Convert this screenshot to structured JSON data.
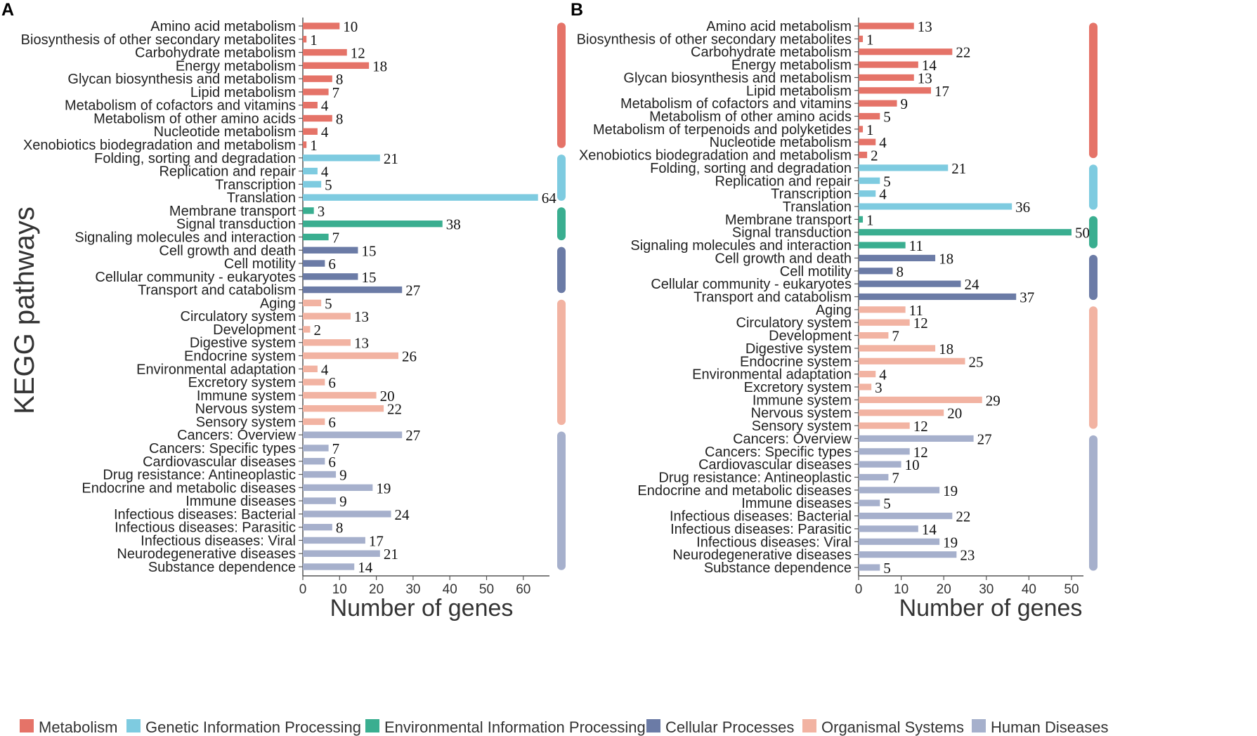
{
  "figure": {
    "ylabel": "KEGG pathways"
  },
  "categories": [
    {
      "key": "metabolism",
      "name": "Metabolism",
      "color": "#e57368"
    },
    {
      "key": "genetic",
      "name": "Genetic Information Processing",
      "color": "#7ecbe0"
    },
    {
      "key": "environmental",
      "name": "Environmental Information Processing",
      "color": "#3aae90"
    },
    {
      "key": "cellular",
      "name": "Cellular Processes",
      "color": "#6b7ba6"
    },
    {
      "key": "organismal",
      "name": "Organismal Systems",
      "color": "#f2b3a2"
    },
    {
      "key": "human",
      "name": "Human Diseases",
      "color": "#a6b0cc"
    }
  ],
  "chart_data": [
    {
      "type": "bar",
      "orientation": "horizontal",
      "panel": "A",
      "xlabel": "Number of genes",
      "ylabel": "KEGG pathways",
      "xlim": [
        0,
        68
      ],
      "xticks": [
        0,
        10,
        20,
        30,
        40,
        50,
        60
      ],
      "pathways": [
        {
          "label": "Amino acid metabolism",
          "value": 10,
          "category": "metabolism"
        },
        {
          "label": "Biosynthesis of other secondary metabolites",
          "value": 1,
          "category": "metabolism"
        },
        {
          "label": "Carbohydrate metabolism",
          "value": 12,
          "category": "metabolism"
        },
        {
          "label": "Energy metabolism",
          "value": 18,
          "category": "metabolism"
        },
        {
          "label": "Glycan biosynthesis and metabolism",
          "value": 8,
          "category": "metabolism"
        },
        {
          "label": "Lipid metabolism",
          "value": 7,
          "category": "metabolism"
        },
        {
          "label": "Metabolism of cofactors and vitamins",
          "value": 4,
          "category": "metabolism"
        },
        {
          "label": "Metabolism of other amino acids",
          "value": 8,
          "category": "metabolism"
        },
        {
          "label": "Nucleotide metabolism",
          "value": 4,
          "category": "metabolism"
        },
        {
          "label": "Xenobiotics biodegradation and metabolism",
          "value": 1,
          "category": "metabolism"
        },
        {
          "label": "Folding, sorting and degradation",
          "value": 21,
          "category": "genetic"
        },
        {
          "label": "Replication and repair",
          "value": 4,
          "category": "genetic"
        },
        {
          "label": "Transcription",
          "value": 5,
          "category": "genetic"
        },
        {
          "label": "Translation",
          "value": 64,
          "category": "genetic"
        },
        {
          "label": "Membrane transport",
          "value": 3,
          "category": "environmental"
        },
        {
          "label": "Signal transduction",
          "value": 38,
          "category": "environmental"
        },
        {
          "label": "Signaling molecules and interaction",
          "value": 7,
          "category": "environmental"
        },
        {
          "label": "Cell growth and death",
          "value": 15,
          "category": "cellular"
        },
        {
          "label": "Cell motility",
          "value": 6,
          "category": "cellular"
        },
        {
          "label": "Cellular community - eukaryotes",
          "value": 15,
          "category": "cellular"
        },
        {
          "label": "Transport and catabolism",
          "value": 27,
          "category": "cellular"
        },
        {
          "label": "Aging",
          "value": 5,
          "category": "organismal"
        },
        {
          "label": "Circulatory system",
          "value": 13,
          "category": "organismal"
        },
        {
          "label": "Development",
          "value": 2,
          "category": "organismal"
        },
        {
          "label": "Digestive system",
          "value": 13,
          "category": "organismal"
        },
        {
          "label": "Endocrine system",
          "value": 26,
          "category": "organismal"
        },
        {
          "label": "Environmental adaptation",
          "value": 4,
          "category": "organismal"
        },
        {
          "label": "Excretory system",
          "value": 6,
          "category": "organismal"
        },
        {
          "label": "Immune system",
          "value": 20,
          "category": "organismal"
        },
        {
          "label": "Nervous system",
          "value": 22,
          "category": "organismal"
        },
        {
          "label": "Sensory system",
          "value": 6,
          "category": "organismal"
        },
        {
          "label": "Cancers: Overview",
          "value": 27,
          "category": "human"
        },
        {
          "label": "Cancers: Specific types",
          "value": 7,
          "category": "human"
        },
        {
          "label": "Cardiovascular diseases",
          "value": 6,
          "category": "human"
        },
        {
          "label": "Drug resistance: Antineoplastic",
          "value": 9,
          "category": "human"
        },
        {
          "label": "Endocrine and metabolic diseases",
          "value": 19,
          "category": "human"
        },
        {
          "label": "Immune diseases",
          "value": 9,
          "category": "human"
        },
        {
          "label": "Infectious diseases: Bacterial",
          "value": 24,
          "category": "human"
        },
        {
          "label": "Infectious diseases: Parasitic",
          "value": 8,
          "category": "human"
        },
        {
          "label": "Infectious diseases: Viral",
          "value": 17,
          "category": "human"
        },
        {
          "label": "Neurodegenerative diseases",
          "value": 21,
          "category": "human"
        },
        {
          "label": "Substance dependence",
          "value": 14,
          "category": "human"
        }
      ]
    },
    {
      "type": "bar",
      "orientation": "horizontal",
      "panel": "B",
      "xlabel": "Number of genes",
      "ylabel": "",
      "xlim": [
        0,
        52
      ],
      "xticks": [
        0,
        10,
        20,
        30,
        40,
        50
      ],
      "pathways": [
        {
          "label": "Amino acid metabolism",
          "value": 13,
          "category": "metabolism"
        },
        {
          "label": "Biosynthesis of other secondary metabolites",
          "value": 1,
          "category": "metabolism"
        },
        {
          "label": "Carbohydrate metabolism",
          "value": 22,
          "category": "metabolism"
        },
        {
          "label": "Energy metabolism",
          "value": 14,
          "category": "metabolism"
        },
        {
          "label": "Glycan biosynthesis and metabolism",
          "value": 13,
          "category": "metabolism"
        },
        {
          "label": "Lipid metabolism",
          "value": 17,
          "category": "metabolism"
        },
        {
          "label": "Metabolism of cofactors and vitamins",
          "value": 9,
          "category": "metabolism"
        },
        {
          "label": "Metabolism of other amino acids",
          "value": 5,
          "category": "metabolism"
        },
        {
          "label": "Metabolism of terpenoids and polyketides",
          "value": 1,
          "category": "metabolism"
        },
        {
          "label": "Nucleotide metabolism",
          "value": 4,
          "category": "metabolism"
        },
        {
          "label": "Xenobiotics biodegradation and metabolism",
          "value": 2,
          "category": "metabolism"
        },
        {
          "label": "Folding, sorting and degradation",
          "value": 21,
          "category": "genetic"
        },
        {
          "label": "Replication and repair",
          "value": 5,
          "category": "genetic"
        },
        {
          "label": "Transcription",
          "value": 4,
          "category": "genetic"
        },
        {
          "label": "Translation",
          "value": 36,
          "category": "genetic"
        },
        {
          "label": "Membrane transport",
          "value": 1,
          "category": "environmental"
        },
        {
          "label": "Signal transduction",
          "value": 50,
          "category": "environmental"
        },
        {
          "label": "Signaling molecules and interaction",
          "value": 11,
          "category": "environmental"
        },
        {
          "label": "Cell growth and death",
          "value": 18,
          "category": "cellular"
        },
        {
          "label": "Cell motility",
          "value": 8,
          "category": "cellular"
        },
        {
          "label": "Cellular community - eukaryotes",
          "value": 24,
          "category": "cellular"
        },
        {
          "label": "Transport and catabolism",
          "value": 37,
          "category": "cellular"
        },
        {
          "label": "Aging",
          "value": 11,
          "category": "organismal"
        },
        {
          "label": "Circulatory system",
          "value": 12,
          "category": "organismal"
        },
        {
          "label": "Development",
          "value": 7,
          "category": "organismal"
        },
        {
          "label": "Digestive system",
          "value": 18,
          "category": "organismal"
        },
        {
          "label": "Endocrine system",
          "value": 25,
          "category": "organismal"
        },
        {
          "label": "Environmental adaptation",
          "value": 4,
          "category": "organismal"
        },
        {
          "label": "Excretory system",
          "value": 3,
          "category": "organismal"
        },
        {
          "label": "Immune system",
          "value": 29,
          "category": "organismal"
        },
        {
          "label": "Nervous system",
          "value": 20,
          "category": "organismal"
        },
        {
          "label": "Sensory system",
          "value": 12,
          "category": "organismal"
        },
        {
          "label": "Cancers: Overview",
          "value": 27,
          "category": "human"
        },
        {
          "label": "Cancers: Specific types",
          "value": 12,
          "category": "human"
        },
        {
          "label": "Cardiovascular diseases",
          "value": 10,
          "category": "human"
        },
        {
          "label": "Drug resistance: Antineoplastic",
          "value": 7,
          "category": "human"
        },
        {
          "label": "Endocrine and metabolic diseases",
          "value": 19,
          "category": "human"
        },
        {
          "label": "Immune diseases",
          "value": 5,
          "category": "human"
        },
        {
          "label": "Infectious diseases: Bacterial",
          "value": 22,
          "category": "human"
        },
        {
          "label": "Infectious diseases: Parasitic",
          "value": 14,
          "category": "human"
        },
        {
          "label": "Infectious diseases: Viral",
          "value": 19,
          "category": "human"
        },
        {
          "label": "Neurodegenerative diseases",
          "value": 23,
          "category": "human"
        },
        {
          "label": "Substance dependence",
          "value": 5,
          "category": "human"
        }
      ]
    }
  ]
}
